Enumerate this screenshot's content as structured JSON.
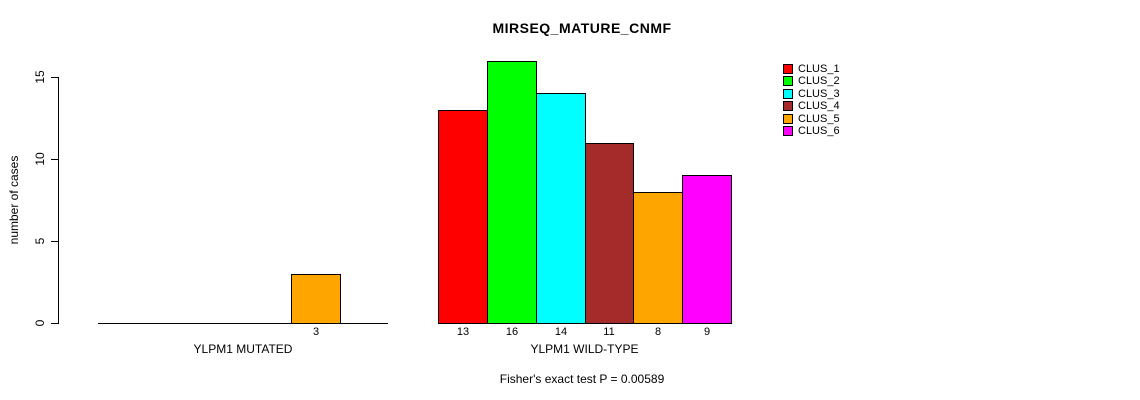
{
  "chart_data": {
    "type": "bar",
    "title": "MIRSEQ_MATURE_CNMF",
    "ylabel": "number of cases",
    "xlabel": "",
    "ylim": [
      0,
      15
    ],
    "yticks": [
      0,
      5,
      10,
      15
    ],
    "grid": false,
    "background": "#FFFFFF",
    "bar_border_color": "#000000",
    "legend": {
      "position": "top-right",
      "entries": [
        {
          "label": "CLUS_1",
          "color": "#FF0000"
        },
        {
          "label": "CLUS_2",
          "color": "#00FF00"
        },
        {
          "label": "CLUS_3",
          "color": "#00FFFF"
        },
        {
          "label": "CLUS_4",
          "color": "#A52A2A"
        },
        {
          "label": "CLUS_5",
          "color": "#FFA500"
        },
        {
          "label": "CLUS_6",
          "color": "#FF00FF"
        }
      ]
    },
    "categories": [
      "CLUS_1",
      "CLUS_2",
      "CLUS_3",
      "CLUS_4",
      "CLUS_5",
      "CLUS_6"
    ],
    "groups": [
      {
        "label": "YLPM1 MUTATED",
        "values": [
          0,
          0,
          0,
          0,
          3,
          0
        ]
      },
      {
        "label": "YLPM1 WILD-TYPE",
        "values": [
          13,
          16,
          14,
          11,
          8,
          9
        ]
      }
    ],
    "caption": "Fisher's exact test P = 0.00589"
  }
}
